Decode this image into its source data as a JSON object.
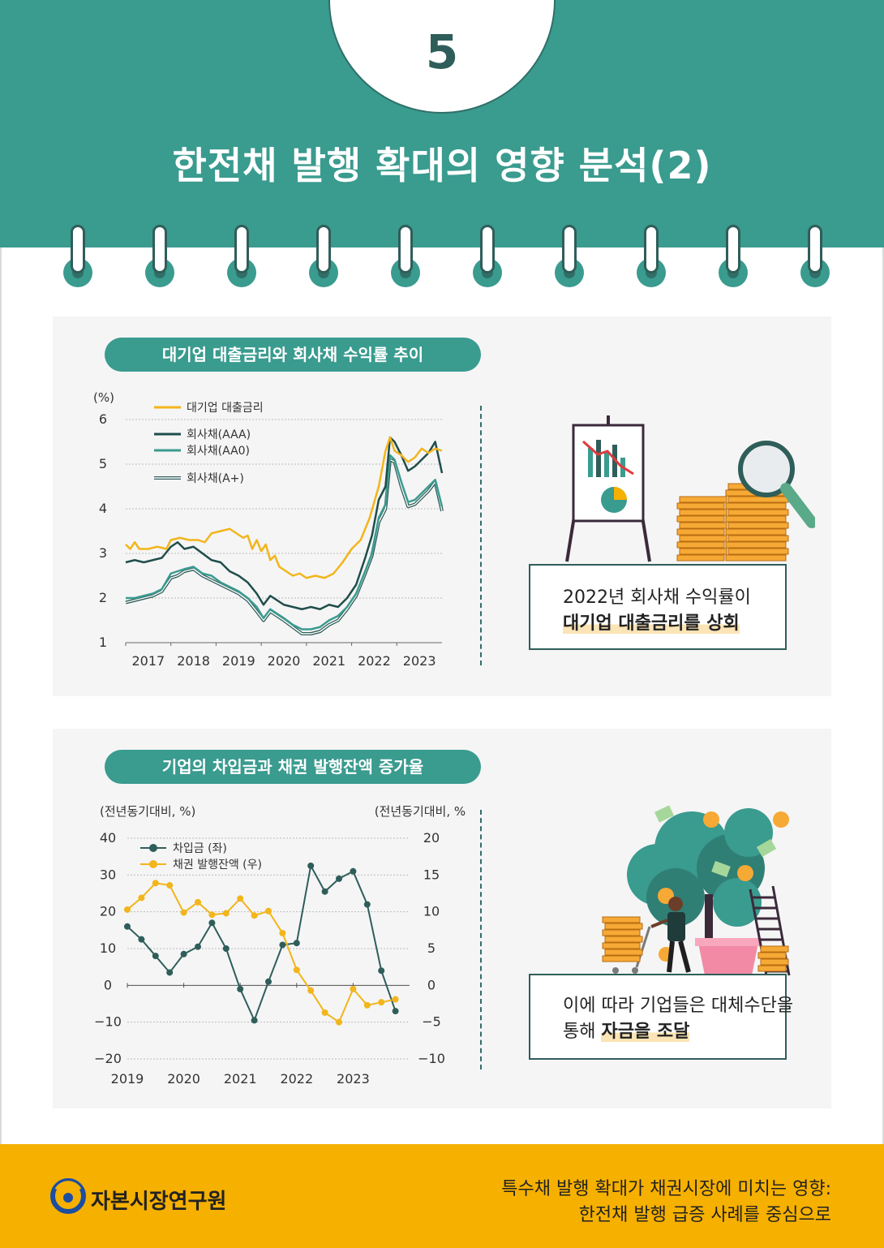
{
  "header": {
    "section_number": "5",
    "title": "한전채 발행 확대의 영향 분석(2)"
  },
  "panel1": {
    "pill_title": "대기업 대출금리와 회사채 수익률 추이",
    "callout_line1": "2022년 회사채 수익률이",
    "callout_line2": "대기업 대출금리를 상회"
  },
  "panel2": {
    "pill_title": "기업의 차입금과 채권 발행잔액 증가율",
    "callout_line1": "이에 따라 기업들은 대체수단을",
    "callout_line2_plain": "통해 ",
    "callout_line2_hl": "자금을 조달"
  },
  "footer": {
    "logo_text": "자본시장연구원",
    "report_line1": "특수채 발행 확대가  채권시장에 미치는 영향:",
    "report_line2": "한전채 발행 급증 사례를 중심으로"
  },
  "colors": {
    "teal": "#3a9b8f",
    "dark_teal": "#2f5e5a",
    "yellow": "#f6b000",
    "line_yellow": "#f2b51b"
  },
  "chart_data": [
    {
      "type": "line",
      "title": "대기업 대출금리와 회사채 수익률 추이",
      "ylabel": "(%)",
      "ylim": [
        1,
        6
      ],
      "yticks": [
        "1",
        "2",
        "3",
        "4",
        "5",
        "6"
      ],
      "xlim": [
        2017,
        2024
      ],
      "xticks": [
        "2017",
        "2018",
        "2019",
        "2020",
        "2021",
        "2022",
        "2023"
      ],
      "legend_position": "top-left",
      "grid": true,
      "series": [
        {
          "name": "대기업 대출금리",
          "color": "#f2b51b",
          "style": "solid",
          "x": [
            2017.0,
            2017.1,
            2017.2,
            2017.3,
            2017.5,
            2017.7,
            2017.9,
            2018.0,
            2018.2,
            2018.4,
            2018.6,
            2018.75,
            2018.9,
            2019.1,
            2019.3,
            2019.45,
            2019.6,
            2019.7,
            2019.8,
            2019.9,
            2020.0,
            2020.1,
            2020.2,
            2020.3,
            2020.4,
            2020.55,
            2020.7,
            2020.85,
            2021.0,
            2021.2,
            2021.4,
            2021.6,
            2021.8,
            2022.0,
            2022.2,
            2022.4,
            2022.6,
            2022.75,
            2022.85,
            2022.95,
            2023.1,
            2023.25,
            2023.4,
            2023.55,
            2023.7,
            2023.85,
            2024.0
          ],
          "values": [
            3.2,
            3.1,
            3.25,
            3.1,
            3.1,
            3.15,
            3.1,
            3.3,
            3.35,
            3.3,
            3.3,
            3.25,
            3.45,
            3.5,
            3.55,
            3.45,
            3.35,
            3.4,
            3.1,
            3.3,
            3.05,
            3.2,
            2.85,
            2.95,
            2.7,
            2.6,
            2.5,
            2.55,
            2.45,
            2.5,
            2.45,
            2.55,
            2.8,
            3.1,
            3.3,
            3.8,
            4.5,
            5.3,
            5.6,
            5.3,
            5.2,
            5.05,
            5.15,
            5.35,
            5.25,
            5.35,
            5.3
          ]
        },
        {
          "name": "회사채(AAA)",
          "color": "#1f4e4a",
          "style": "solid",
          "x": [
            2017.0,
            2017.2,
            2017.4,
            2017.6,
            2017.8,
            2018.0,
            2018.15,
            2018.3,
            2018.5,
            2018.7,
            2018.9,
            2019.1,
            2019.3,
            2019.5,
            2019.7,
            2019.9,
            2020.05,
            2020.2,
            2020.35,
            2020.5,
            2020.7,
            2020.9,
            2021.1,
            2021.3,
            2021.5,
            2021.7,
            2021.9,
            2022.1,
            2022.3,
            2022.45,
            2022.6,
            2022.75,
            2022.85,
            2022.95,
            2023.1,
            2023.25,
            2023.4,
            2023.55,
            2023.7,
            2023.85,
            2024.0
          ],
          "values": [
            2.8,
            2.85,
            2.8,
            2.85,
            2.9,
            3.15,
            3.25,
            3.1,
            3.15,
            3.0,
            2.85,
            2.8,
            2.6,
            2.5,
            2.35,
            2.1,
            1.85,
            2.05,
            1.95,
            1.85,
            1.8,
            1.75,
            1.8,
            1.75,
            1.85,
            1.8,
            2.0,
            2.3,
            2.9,
            3.4,
            4.2,
            4.5,
            5.6,
            5.5,
            5.2,
            4.85,
            4.95,
            5.1,
            5.25,
            5.5,
            4.8
          ]
        },
        {
          "name": "회사채(AA0)",
          "color": "#3a9b8f",
          "style": "solid",
          "x": [
            2017.0,
            2017.2,
            2017.4,
            2017.6,
            2017.8,
            2018.0,
            2018.15,
            2018.3,
            2018.5,
            2018.7,
            2018.9,
            2019.1,
            2019.3,
            2019.5,
            2019.7,
            2019.9,
            2020.05,
            2020.2,
            2020.35,
            2020.5,
            2020.7,
            2020.9,
            2021.1,
            2021.3,
            2021.5,
            2021.7,
            2021.9,
            2022.1,
            2022.3,
            2022.45,
            2022.6,
            2022.75,
            2022.85,
            2022.95,
            2023.1,
            2023.25,
            2023.4,
            2023.55,
            2023.7,
            2023.85,
            2024.0
          ],
          "values": [
            2.0,
            2.0,
            2.05,
            2.1,
            2.2,
            2.55,
            2.6,
            2.65,
            2.7,
            2.55,
            2.5,
            2.35,
            2.25,
            2.15,
            2.0,
            1.8,
            1.55,
            1.75,
            1.65,
            1.55,
            1.4,
            1.3,
            1.3,
            1.35,
            1.5,
            1.6,
            1.8,
            2.1,
            2.6,
            3.0,
            3.8,
            4.1,
            5.2,
            5.1,
            4.6,
            4.15,
            4.2,
            4.35,
            4.5,
            4.65,
            4.05
          ]
        },
        {
          "name": "회사채(A+)",
          "color": "#2f5e5a",
          "style": "double",
          "x": [
            2017.0,
            2017.2,
            2017.4,
            2017.6,
            2017.8,
            2018.0,
            2018.15,
            2018.3,
            2018.5,
            2018.7,
            2018.9,
            2019.1,
            2019.3,
            2019.5,
            2019.7,
            2019.9,
            2020.05,
            2020.2,
            2020.35,
            2020.5,
            2020.7,
            2020.9,
            2021.1,
            2021.3,
            2021.5,
            2021.7,
            2021.9,
            2022.1,
            2022.3,
            2022.45,
            2022.6,
            2022.75,
            2022.85,
            2022.95,
            2023.1,
            2023.25,
            2023.4,
            2023.55,
            2023.7,
            2023.85,
            2024.0
          ],
          "values": [
            1.9,
            1.95,
            2.0,
            2.05,
            2.15,
            2.45,
            2.5,
            2.6,
            2.65,
            2.5,
            2.4,
            2.3,
            2.2,
            2.1,
            1.95,
            1.7,
            1.5,
            1.7,
            1.6,
            1.5,
            1.35,
            1.2,
            1.2,
            1.25,
            1.4,
            1.5,
            1.75,
            2.05,
            2.55,
            2.95,
            3.7,
            4.0,
            5.1,
            5.05,
            4.5,
            4.05,
            4.1,
            4.25,
            4.4,
            4.6,
            3.95
          ]
        }
      ]
    },
    {
      "type": "line",
      "title": "기업의 차입금과 채권 발행잔액 증가율",
      "ylabel_left": "(전년동기대비, %)",
      "ylabel_right": "(전년동기대비, %)",
      "ylim_left": [
        -20,
        40
      ],
      "ylim_right": [
        -10,
        20
      ],
      "yticks_left": [
        "40",
        "30",
        "20",
        "10",
        "0",
        "−10",
        "−20"
      ],
      "yticks_right": [
        "20",
        "15",
        "10",
        "5",
        "0",
        "−5",
        "−10"
      ],
      "xlim": [
        2019,
        2024
      ],
      "xticks": [
        "2019",
        "2020",
        "2021",
        "2022",
        "2023"
      ],
      "legend_position": "top-left",
      "grid": true,
      "series": [
        {
          "name": "차입금 (좌)",
          "color": "#2f5e5a",
          "axis": "left",
          "x": [
            2019.0,
            2019.25,
            2019.5,
            2019.75,
            2020.0,
            2020.25,
            2020.5,
            2020.75,
            2021.0,
            2021.25,
            2021.5,
            2021.75,
            2022.0,
            2022.25,
            2022.5,
            2022.75,
            2023.0,
            2023.25,
            2023.5,
            2023.75
          ],
          "values": [
            16,
            12.5,
            8,
            3.5,
            8.5,
            10.5,
            17,
            10,
            -1,
            -9.5,
            1,
            11,
            11.5,
            32.5,
            25.5,
            29,
            31,
            22,
            4,
            -7
          ]
        },
        {
          "name": "채권 발행잔액 (우)",
          "color": "#f2b51b",
          "axis": "right",
          "x": [
            2019.0,
            2019.25,
            2019.5,
            2019.75,
            2020.0,
            2020.25,
            2020.5,
            2020.75,
            2021.0,
            2021.25,
            2021.5,
            2021.75,
            2022.0,
            2022.25,
            2022.5,
            2022.75,
            2023.0,
            2023.25,
            2023.5,
            2023.75
          ],
          "values": [
            10.3,
            11.9,
            13.9,
            13.6,
            9.9,
            11.3,
            9.6,
            9.8,
            11.8,
            9.5,
            10.1,
            7.1,
            2.1,
            -0.7,
            -3.7,
            -5.0,
            -0.5,
            -2.7,
            -2.3,
            -1.9
          ]
        }
      ]
    }
  ]
}
